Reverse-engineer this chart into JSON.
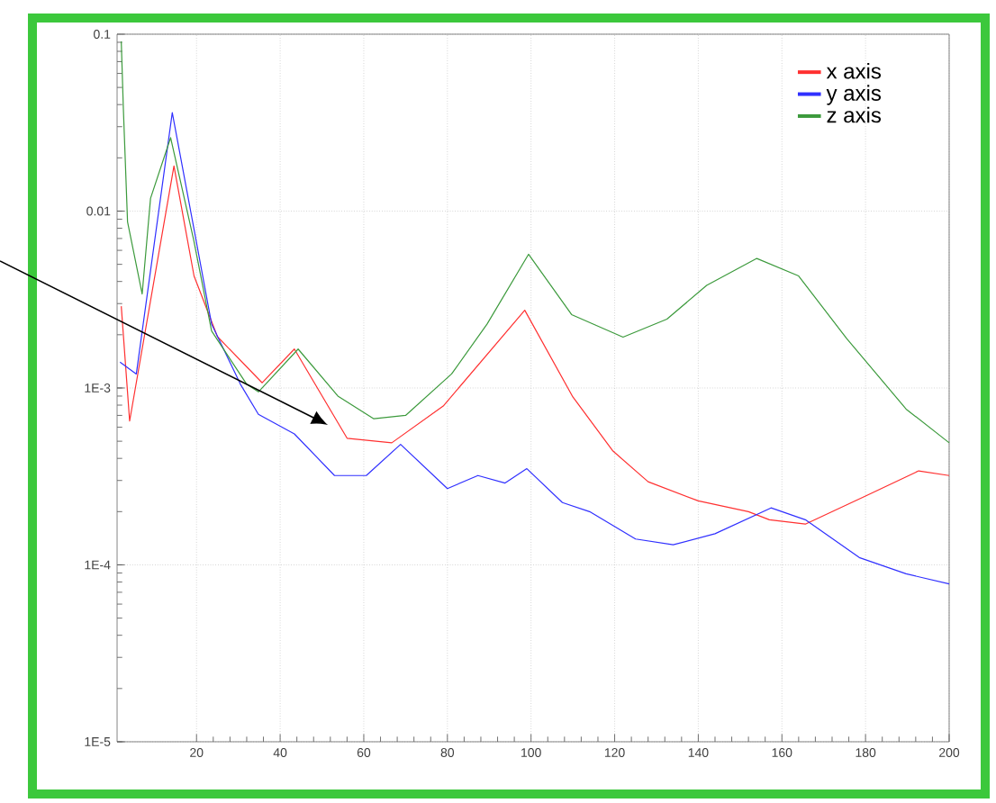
{
  "chart_data": {
    "type": "line",
    "xlim": [
      1,
      200
    ],
    "xticks": [
      20,
      40,
      60,
      80,
      100,
      120,
      140,
      160,
      180,
      200
    ],
    "ylim": [
      1e-05,
      0.1
    ],
    "yticks": [
      {
        "value": 1e-05,
        "label": "1E-5"
      },
      {
        "value": 0.0001,
        "label": "1E-4"
      },
      {
        "value": 0.001,
        "label": "1E-3"
      },
      0.01,
      0.1
    ],
    "log": "y",
    "grid": true,
    "legend": "top right",
    "line_style": "solid",
    "marker": "none",
    "series": [
      {
        "name": "x axis",
        "color": "#ff3030",
        "x": [
          2,
          4,
          14.6,
          19.4,
          25,
          35.7,
          43.4,
          56,
          66.7,
          79,
          98.5,
          110,
          119.6,
          128,
          140,
          152,
          157,
          165.6,
          180,
          192.7,
          200
        ],
        "values": [
          0.0029,
          0.00065,
          0.018,
          0.0043,
          0.00195,
          0.00107,
          0.00166,
          0.00052,
          0.00049,
          0.00079,
          0.00275,
          0.00089,
          0.00044,
          0.000295,
          0.00023,
          0.0002,
          0.00018,
          0.00017,
          0.000245,
          0.00034,
          0.00032
        ]
      },
      {
        "name": "y axis",
        "color": "#3030ff",
        "x": [
          1.7,
          5.6,
          14.2,
          19.4,
          23.6,
          30.5,
          34.8,
          43.4,
          53,
          60.6,
          68.8,
          80,
          87.3,
          93.8,
          99,
          107.5,
          114,
          125,
          134,
          144,
          157.4,
          165.6,
          178.5,
          189.7,
          200
        ],
        "values": [
          0.0014,
          0.0012,
          0.036,
          0.0079,
          0.0023,
          0.00105,
          0.00071,
          0.00055,
          0.00032,
          0.00032,
          0.00048,
          0.00027,
          0.00032,
          0.00029,
          0.00035,
          0.000225,
          0.0002,
          0.00014,
          0.00013,
          0.00015,
          0.00021,
          0.00018,
          0.00011,
          8.9e-05,
          7.8e-05
        ]
      },
      {
        "name": "z axis",
        "color": "#3c9a3c",
        "x": [
          2,
          2.5,
          3.5,
          7,
          9,
          13.8,
          19.3,
          23.6,
          32,
          34.8,
          44.3,
          53.8,
          62.4,
          70,
          81,
          89.5,
          99.4,
          109.7,
          122,
          132.5,
          142,
          154,
          164,
          175.5,
          189.7,
          200
        ],
        "values": [
          0.091,
          0.038,
          0.0087,
          0.0034,
          0.0118,
          0.026,
          0.0069,
          0.0021,
          0.00105,
          0.00095,
          0.00166,
          0.0009,
          0.00067,
          0.0007,
          0.0012,
          0.0023,
          0.0057,
          0.0026,
          0.00194,
          0.00245,
          0.0038,
          0.0054,
          0.0043,
          0.0019,
          0.00076,
          0.00049
        ]
      }
    ]
  }
}
